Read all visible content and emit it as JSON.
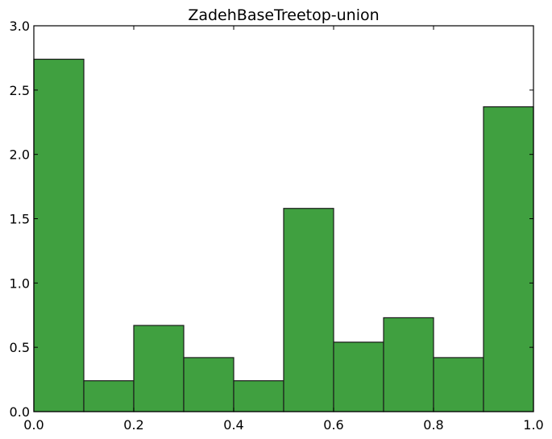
{
  "chart_data": {
    "type": "bar",
    "subtype": "histogram",
    "title": "ZadehBaseTreetop-union",
    "xlabel": "",
    "ylabel": "",
    "bin_edges": [
      0.0,
      0.1,
      0.2,
      0.3,
      0.4,
      0.5,
      0.6,
      0.7,
      0.8,
      0.9,
      1.0
    ],
    "values": [
      2.74,
      0.24,
      0.67,
      0.42,
      0.24,
      1.58,
      0.54,
      0.73,
      0.42,
      2.37
    ],
    "xlim": [
      0.0,
      1.0
    ],
    "ylim": [
      0.0,
      3.0
    ],
    "xticks": [
      "0.0",
      "0.2",
      "0.4",
      "0.6",
      "0.8",
      "1.0"
    ],
    "yticks": [
      "0.0",
      "0.5",
      "1.0",
      "1.5",
      "2.0",
      "2.5",
      "3.0"
    ],
    "grid": false,
    "bar_color": "#40a040",
    "edge_color": "#1a1a1a"
  }
}
